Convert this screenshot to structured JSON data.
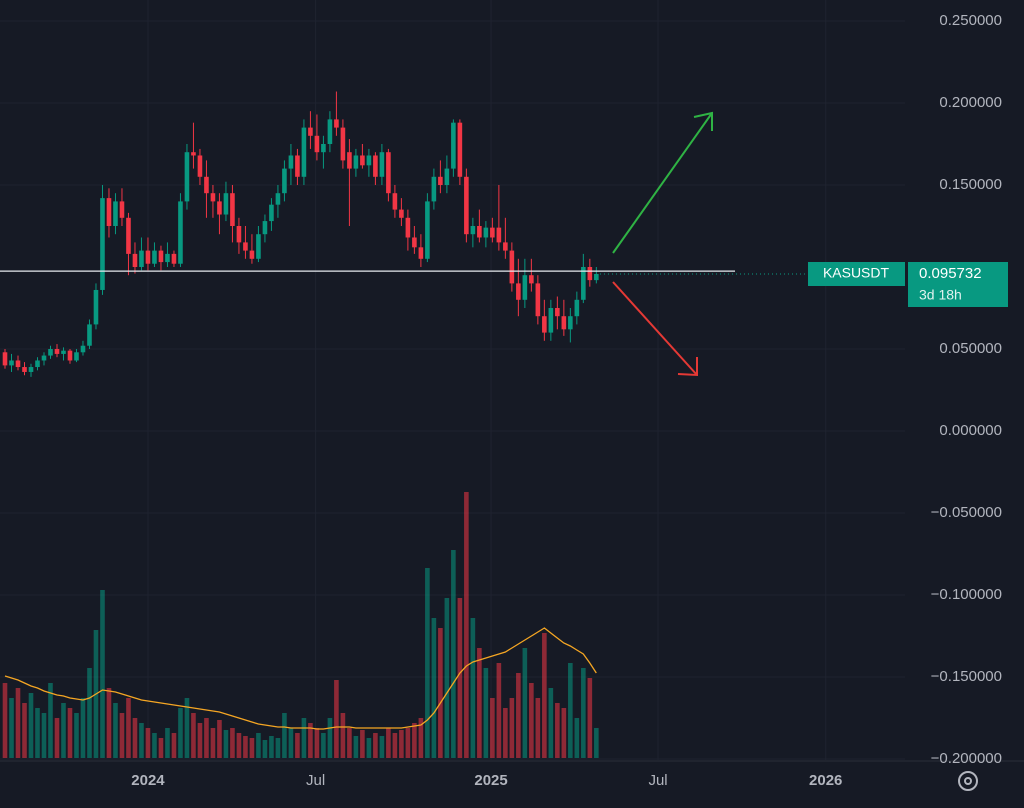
{
  "chart_data": {
    "type": "candlestick",
    "symbol": "KASUSDT",
    "last_price": 0.095732,
    "countdown": "3d 18h",
    "open": [
      0.048,
      0.04,
      0.043,
      0.039,
      0.036,
      0.039,
      0.043,
      0.046,
      0.05,
      0.047,
      0.049,
      0.043,
      0.048,
      0.052,
      0.065,
      0.086,
      0.142,
      0.125,
      0.14,
      0.13,
      0.108,
      0.1,
      0.11,
      0.102,
      0.11,
      0.103,
      0.108,
      0.102,
      0.14,
      0.17,
      0.168,
      0.155,
      0.145,
      0.14,
      0.132,
      0.145,
      0.125,
      0.115,
      0.11,
      0.105,
      0.12,
      0.128,
      0.138,
      0.145,
      0.16,
      0.168,
      0.155,
      0.185,
      0.18,
      0.17,
      0.175,
      0.19,
      0.185,
      0.17,
      0.16,
      0.168,
      0.162,
      0.168,
      0.155,
      0.17,
      0.145,
      0.135,
      0.13,
      0.118,
      0.112,
      0.105,
      0.14,
      0.155,
      0.15,
      0.16,
      0.188,
      0.155,
      0.12,
      0.125,
      0.118,
      0.124,
      0.124,
      0.115,
      0.11,
      0.09,
      0.08,
      0.095,
      0.09,
      0.07,
      0.06,
      0.075,
      0.07,
      0.062,
      0.07,
      0.08,
      0.1,
      0.092
    ],
    "high": [
      0.05,
      0.047,
      0.046,
      0.042,
      0.041,
      0.045,
      0.048,
      0.052,
      0.053,
      0.051,
      0.05,
      0.05,
      0.055,
      0.068,
      0.09,
      0.15,
      0.148,
      0.145,
      0.148,
      0.133,
      0.115,
      0.118,
      0.118,
      0.115,
      0.113,
      0.115,
      0.11,
      0.145,
      0.175,
      0.188,
      0.172,
      0.165,
      0.15,
      0.145,
      0.152,
      0.15,
      0.13,
      0.125,
      0.12,
      0.125,
      0.132,
      0.142,
      0.15,
      0.165,
      0.175,
      0.172,
      0.19,
      0.195,
      0.193,
      0.18,
      0.195,
      0.207,
      0.19,
      0.178,
      0.172,
      0.175,
      0.172,
      0.17,
      0.175,
      0.172,
      0.15,
      0.142,
      0.135,
      0.125,
      0.12,
      0.145,
      0.16,
      0.165,
      0.168,
      0.19,
      0.19,
      0.16,
      0.13,
      0.135,
      0.128,
      0.13,
      0.15,
      0.13,
      0.115,
      0.105,
      0.105,
      0.105,
      0.095,
      0.08,
      0.08,
      0.082,
      0.08,
      0.075,
      0.085,
      0.108,
      0.105,
      0.1
    ],
    "low": [
      0.038,
      0.036,
      0.037,
      0.034,
      0.033,
      0.037,
      0.04,
      0.044,
      0.045,
      0.043,
      0.041,
      0.042,
      0.046,
      0.05,
      0.062,
      0.083,
      0.118,
      0.12,
      0.125,
      0.095,
      0.096,
      0.098,
      0.098,
      0.1,
      0.098,
      0.1,
      0.1,
      0.1,
      0.135,
      0.16,
      0.15,
      0.13,
      0.13,
      0.12,
      0.128,
      0.115,
      0.108,
      0.105,
      0.102,
      0.103,
      0.115,
      0.122,
      0.13,
      0.14,
      0.15,
      0.15,
      0.15,
      0.172,
      0.165,
      0.16,
      0.17,
      0.18,
      0.16,
      0.125,
      0.155,
      0.16,
      0.155,
      0.15,
      0.15,
      0.14,
      0.13,
      0.125,
      0.11,
      0.108,
      0.1,
      0.103,
      0.135,
      0.145,
      0.145,
      0.155,
      0.15,
      0.115,
      0.112,
      0.115,
      0.112,
      0.115,
      0.11,
      0.105,
      0.085,
      0.07,
      0.075,
      0.085,
      0.065,
      0.055,
      0.055,
      0.062,
      0.058,
      0.054,
      0.065,
      0.078,
      0.088,
      0.09
    ],
    "close": [
      0.04,
      0.043,
      0.039,
      0.036,
      0.039,
      0.043,
      0.046,
      0.05,
      0.047,
      0.049,
      0.043,
      0.048,
      0.052,
      0.065,
      0.086,
      0.142,
      0.125,
      0.14,
      0.13,
      0.108,
      0.1,
      0.11,
      0.102,
      0.11,
      0.103,
      0.108,
      0.102,
      0.14,
      0.17,
      0.168,
      0.155,
      0.145,
      0.14,
      0.132,
      0.145,
      0.125,
      0.115,
      0.11,
      0.105,
      0.12,
      0.128,
      0.138,
      0.145,
      0.16,
      0.168,
      0.155,
      0.185,
      0.18,
      0.17,
      0.175,
      0.19,
      0.185,
      0.165,
      0.16,
      0.168,
      0.162,
      0.168,
      0.155,
      0.17,
      0.145,
      0.135,
      0.13,
      0.118,
      0.112,
      0.105,
      0.14,
      0.155,
      0.15,
      0.16,
      0.188,
      0.155,
      0.12,
      0.125,
      0.118,
      0.124,
      0.118,
      0.115,
      0.11,
      0.09,
      0.08,
      0.095,
      0.09,
      0.07,
      0.06,
      0.075,
      0.07,
      0.062,
      0.07,
      0.08,
      0.1,
      0.092,
      0.095732
    ],
    "volume": [
      75,
      60,
      70,
      55,
      65,
      50,
      45,
      75,
      40,
      55,
      50,
      45,
      60,
      90,
      128,
      168,
      70,
      55,
      45,
      60,
      40,
      35,
      30,
      25,
      20,
      30,
      25,
      50,
      60,
      45,
      35,
      40,
      30,
      38,
      28,
      30,
      25,
      22,
      20,
      25,
      18,
      22,
      20,
      45,
      30,
      25,
      40,
      35,
      30,
      25,
      40,
      78,
      45,
      30,
      22,
      28,
      20,
      25,
      22,
      30,
      25,
      28,
      30,
      35,
      40,
      190,
      140,
      130,
      160,
      208,
      160,
      266,
      140,
      110,
      90,
      60,
      95,
      50,
      60,
      85,
      110,
      75,
      60,
      125,
      70,
      55,
      50,
      95,
      40,
      90,
      80,
      30
    ],
    "volume_ma": [
      82,
      80,
      78,
      75,
      72,
      70,
      67,
      65,
      63,
      62,
      60,
      59,
      58,
      60,
      64,
      68,
      67,
      66,
      64,
      62,
      60,
      58,
      57,
      56,
      55,
      54,
      53,
      52,
      51,
      50,
      49,
      48,
      47,
      46,
      44,
      42,
      40,
      38,
      36,
      34,
      33,
      32,
      31,
      31,
      30,
      30,
      30,
      30,
      29,
      29,
      30,
      31,
      31,
      31,
      30,
      30,
      30,
      30,
      30,
      30,
      30,
      30,
      31,
      32,
      33,
      38,
      45,
      55,
      65,
      75,
      85,
      92,
      96,
      98,
      100,
      102,
      104,
      106,
      110,
      114,
      118,
      122,
      126,
      130,
      125,
      120,
      115,
      112,
      108,
      104,
      95,
      85
    ],
    "volume_ylim": [
      0,
      300
    ],
    "level": 0.0975,
    "up_color": "#089981",
    "down_color": "#f23645",
    "ylim": [
      -0.2006,
      0.2628
    ],
    "yticks": [
      {
        "value": 0.25,
        "label": "0.250000"
      },
      {
        "value": 0.2,
        "label": "0.200000"
      },
      {
        "value": 0.15,
        "label": "0.150000"
      },
      {
        "value": 0.05,
        "label": "0.050000"
      },
      {
        "value": 0,
        "label": "0.000000"
      },
      {
        "value": -0.05,
        "label": "−0.050000"
      },
      {
        "value": -0.1,
        "label": "−0.100000"
      },
      {
        "value": -0.15,
        "label": "−0.150000"
      },
      {
        "value": -0.2,
        "label": "−0.200000"
      }
    ],
    "xlim": [
      -0.77,
      138.5
    ],
    "xticks": [
      {
        "value": 22,
        "label": "2024"
      },
      {
        "value": 47.8,
        "label": "Jul"
      },
      {
        "value": 74.8,
        "label": "2025"
      },
      {
        "value": 100.5,
        "label": "Jul"
      },
      {
        "value": 126.3,
        "label": "2026"
      }
    ],
    "grid": true
  }
}
